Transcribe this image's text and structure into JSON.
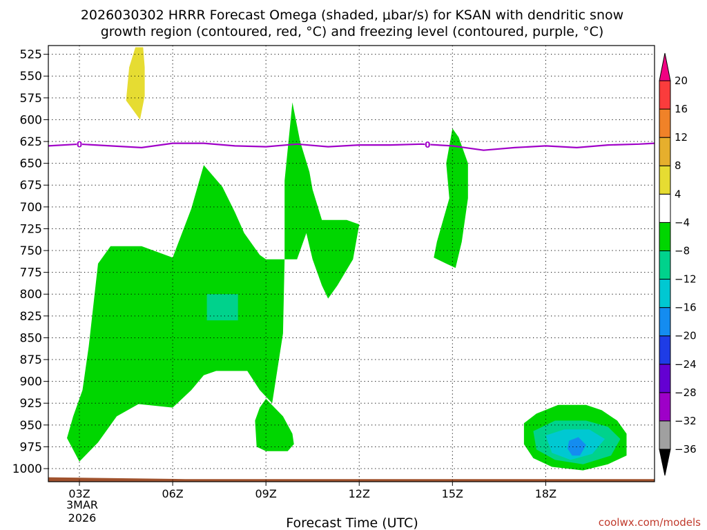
{
  "title_line1": "2026030302 HRRR Forecast Omega (shaded, μbar/s) for KSAN with dendritic snow",
  "title_line2": "growth region (contoured, red, °C) and freezing level (contoured, purple, °C)",
  "xlabel": "Forecast Time (UTC)",
  "credit": "coolwx.com/models",
  "date_label": [
    "3MAR",
    "2026"
  ],
  "chart_data": {
    "type": "heatmap",
    "title": "2026030302 HRRR Forecast Omega (shaded, μbar/s) for KSAN with dendritic snow growth region (contoured, red, °C) and freezing level (contoured, purple, °C)",
    "xlabel": "Forecast Time (UTC)",
    "ylabel": "",
    "x_unit": "hours UTC on 3 MAR 2026",
    "xlim": [
      2,
      21.5
    ],
    "ylim": [
      1015,
      515
    ],
    "y_scale": "linear",
    "grid": true,
    "x_ticks": [
      {
        "x": 3,
        "label": "03Z"
      },
      {
        "x": 6,
        "label": "06Z"
      },
      {
        "x": 9,
        "label": "09Z"
      },
      {
        "x": 12,
        "label": "12Z"
      },
      {
        "x": 15,
        "label": "15Z"
      },
      {
        "x": 18,
        "label": "18Z"
      }
    ],
    "y_ticks": [
      525,
      550,
      575,
      600,
      625,
      650,
      675,
      700,
      725,
      750,
      775,
      800,
      825,
      850,
      875,
      900,
      925,
      950,
      975,
      1000
    ],
    "colorbar": {
      "unit": "μbar/s",
      "levels": [
        -36,
        -32,
        -28,
        -24,
        -20,
        -16,
        -12,
        -8,
        -4,
        4,
        8,
        12,
        16,
        20
      ],
      "colors": [
        "#000000",
        "#a0a0a0",
        "#9e00c8",
        "#6400d2",
        "#1e3ce6",
        "#148cf0",
        "#00c8d2",
        "#00d28c",
        "#00d600",
        "#ffffff",
        "#e6dc32",
        "#e6af2d",
        "#f08228",
        "#fa3c3c",
        "#f00082"
      ]
    },
    "shaded_regions": [
      {
        "label": "omega 4 to 8 (yellow)",
        "color": "#e6dc32",
        "points": [
          [
            4.8,
            517
          ],
          [
            5.05,
            517
          ],
          [
            5.1,
            540
          ],
          [
            5.1,
            573
          ],
          [
            4.95,
            600
          ],
          [
            4.85,
            595
          ],
          [
            4.5,
            578
          ],
          [
            4.6,
            540
          ]
        ]
      },
      {
        "label": "omega -4 to -8 (green) main",
        "color": "#00d600",
        "points": [
          [
            3.0,
            992
          ],
          [
            3.6,
            970
          ],
          [
            4.2,
            940
          ],
          [
            4.9,
            926
          ],
          [
            6.0,
            930
          ],
          [
            6.6,
            910
          ],
          [
            7.0,
            893
          ],
          [
            7.4,
            888
          ],
          [
            8.4,
            888
          ],
          [
            8.8,
            910
          ],
          [
            9.2,
            925
          ],
          [
            9.55,
            845
          ],
          [
            9.6,
            760
          ],
          [
            9.0,
            760
          ],
          [
            8.8,
            755
          ],
          [
            8.3,
            730
          ],
          [
            8.0,
            706
          ],
          [
            7.6,
            677
          ],
          [
            7.0,
            652
          ],
          [
            6.6,
            702
          ],
          [
            6.0,
            758
          ],
          [
            5.0,
            745
          ],
          [
            4.0,
            745
          ],
          [
            3.6,
            765
          ],
          [
            3.3,
            860
          ],
          [
            3.1,
            910
          ],
          [
            2.8,
            940
          ],
          [
            2.6,
            965
          ]
        ]
      },
      {
        "label": "omega -4 to -8 (green) lower",
        "color": "#00d600",
        "points": [
          [
            9.0,
            920
          ],
          [
            9.55,
            940
          ],
          [
            9.85,
            960
          ],
          [
            9.9,
            972
          ],
          [
            9.7,
            980
          ],
          [
            9.0,
            980
          ],
          [
            8.7,
            975
          ],
          [
            8.65,
            945
          ],
          [
            8.8,
            930
          ]
        ]
      },
      {
        "label": "omega -4 to -8 (green) 10Z",
        "color": "#00d600",
        "points": [
          [
            9.6,
            670
          ],
          [
            9.85,
            580
          ],
          [
            10.1,
            625
          ],
          [
            10.4,
            660
          ],
          [
            10.5,
            680
          ],
          [
            10.8,
            715
          ],
          [
            11.6,
            715
          ],
          [
            12.0,
            720
          ],
          [
            11.8,
            760
          ],
          [
            11.3,
            790
          ],
          [
            11.0,
            805
          ],
          [
            10.8,
            790
          ],
          [
            10.5,
            760
          ],
          [
            10.3,
            730
          ],
          [
            10.0,
            760
          ],
          [
            9.6,
            760
          ]
        ]
      },
      {
        "label": "omega -4 to -8 (green) 15Z",
        "color": "#00d600",
        "points": [
          [
            15.0,
            610
          ],
          [
            15.2,
            620
          ],
          [
            15.5,
            650
          ],
          [
            15.5,
            690
          ],
          [
            15.3,
            740
          ],
          [
            15.1,
            770
          ],
          [
            14.8,
            765
          ],
          [
            14.4,
            758
          ],
          [
            14.5,
            740
          ],
          [
            14.9,
            690
          ],
          [
            14.8,
            650
          ]
        ]
      },
      {
        "label": "omega -4 to -8 (green) 19Z",
        "color": "#00d600",
        "points": [
          [
            17.3,
            948
          ],
          [
            17.7,
            937
          ],
          [
            18.4,
            927
          ],
          [
            19.3,
            927
          ],
          [
            19.8,
            933
          ],
          [
            20.3,
            945
          ],
          [
            20.6,
            960
          ],
          [
            20.6,
            985
          ],
          [
            20.0,
            995
          ],
          [
            19.2,
            1002
          ],
          [
            18.2,
            998
          ],
          [
            17.6,
            988
          ],
          [
            17.3,
            972
          ]
        ]
      },
      {
        "label": "omega -8 to -12",
        "color": "#00d28c",
        "points": [
          [
            7.1,
            800
          ],
          [
            8.1,
            800
          ],
          [
            8.1,
            830
          ],
          [
            7.1,
            830
          ]
        ]
      },
      {
        "label": "omega -8 to -12 (19Z)",
        "color": "#00d28c",
        "points": [
          [
            17.6,
            957
          ],
          [
            18.3,
            945
          ],
          [
            19.3,
            945
          ],
          [
            20.0,
            952
          ],
          [
            20.4,
            966
          ],
          [
            20.1,
            985
          ],
          [
            19.2,
            995
          ],
          [
            18.3,
            990
          ],
          [
            17.7,
            978
          ]
        ]
      },
      {
        "label": "omega -12 to -16",
        "color": "#00c8d2",
        "points": [
          [
            18.0,
            962
          ],
          [
            18.6,
            955
          ],
          [
            19.4,
            955
          ],
          [
            19.9,
            966
          ],
          [
            19.5,
            983
          ],
          [
            18.8,
            990
          ],
          [
            18.2,
            982
          ]
        ]
      },
      {
        "label": "omega -16 to -20",
        "color": "#148cf0",
        "points": [
          [
            18.75,
            968
          ],
          [
            19.05,
            964
          ],
          [
            19.3,
            973
          ],
          [
            19.1,
            985
          ],
          [
            18.85,
            985
          ],
          [
            18.7,
            977
          ]
        ]
      }
    ],
    "freezing_level": {
      "label": "0",
      "color": "#a000c8",
      "x": [
        2.0,
        3.0,
        4.0,
        5.0,
        6.0,
        7.0,
        8.0,
        9.0,
        10.0,
        11.0,
        12.0,
        13.0,
        14.0,
        15.0,
        16.0,
        17.0,
        18.0,
        19.0,
        20.0,
        21.0,
        21.5
      ],
      "y": [
        630,
        628,
        630,
        632,
        627,
        627,
        630,
        631,
        628,
        631,
        629,
        629,
        628,
        630,
        635,
        632,
        630,
        632,
        629,
        628,
        627
      ],
      "label_x": [
        3.0,
        14.2
      ]
    },
    "surface_fill": {
      "color": "#a0522d",
      "x": [
        2,
        6.4,
        21.5
      ],
      "y": [
        1010,
        1012,
        1012
      ]
    }
  }
}
